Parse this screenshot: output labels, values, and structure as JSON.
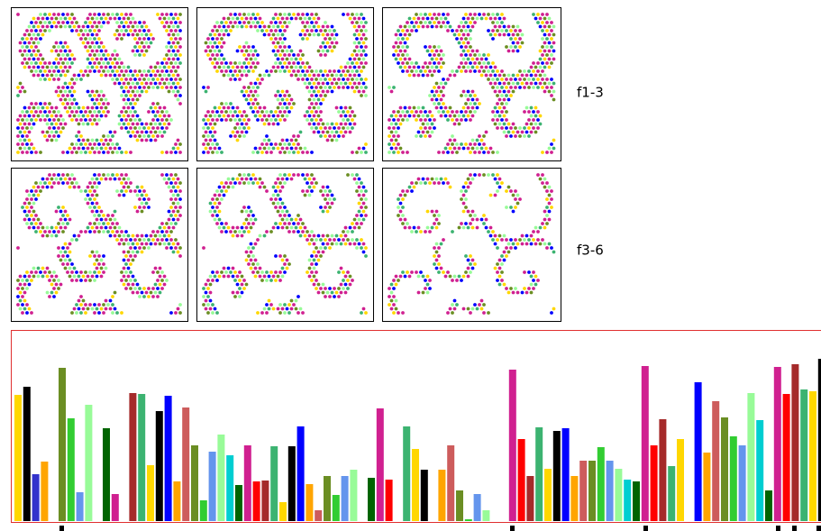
{
  "row_labels": [
    "f1-3",
    "f3-6"
  ],
  "chart_data": {
    "type": "bar",
    "values": [
      140,
      149,
      52,
      66,
      0,
      170,
      114,
      32,
      129,
      0,
      103,
      30,
      0,
      142,
      141,
      62,
      122,
      139,
      44,
      126,
      84,
      23,
      77,
      96,
      73,
      40,
      84,
      44,
      45,
      83,
      21,
      83,
      105,
      41,
      12,
      50,
      29,
      50,
      57,
      0,
      48,
      125,
      46,
      0,
      105,
      80,
      57,
      0,
      57,
      84,
      34,
      2,
      30,
      12,
      0,
      0,
      168,
      91,
      50,
      104,
      58,
      100,
      103,
      50,
      67,
      67,
      82,
      67,
      58,
      46,
      44,
      172,
      84,
      113,
      61,
      91,
      0,
      154,
      76,
      133,
      115,
      94,
      84,
      142,
      112,
      34,
      171,
      141,
      174,
      146,
      144,
      180
    ],
    "colors": [
      "#ffd700",
      "#000000",
      "#3333cc",
      "#ffa500",
      "#cd5c5c",
      "#6b8e23",
      "#32cd32",
      "#6495ed",
      "#98fb98",
      "#00ced1",
      "#006400",
      "#d02090",
      "#ff0000",
      "#a52a2a",
      "#3cb371",
      "#ffd700",
      "#000000",
      "#0000ff",
      "#ffa500",
      "#cd5c5c",
      "#6b8e23",
      "#32cd32",
      "#6495ed",
      "#98fb98",
      "#00ced1",
      "#006400",
      "#d02090",
      "#ff0000",
      "#a52a2a",
      "#3cb371",
      "#ffd700",
      "#000000",
      "#0000ff",
      "#ffa500",
      "#cd5c5c",
      "#6b8e23",
      "#32cd32",
      "#6495ed",
      "#98fb98",
      "#00ced1",
      "#006400",
      "#d02090",
      "#ff0000",
      "#a52a2a",
      "#3cb371",
      "#ffd700",
      "#000000",
      "#0000ff",
      "#ffa500",
      "#cd5c5c",
      "#6b8e23",
      "#32cd32",
      "#6495ed",
      "#98fb98",
      "#00ced1",
      "#006400",
      "#d02090",
      "#ff0000",
      "#a52a2a",
      "#3cb371",
      "#ffd700",
      "#000000",
      "#0000ff",
      "#ffa500",
      "#cd5c5c",
      "#6b8e23",
      "#32cd32",
      "#6495ed",
      "#98fb98",
      "#00ced1",
      "#006400",
      "#d02090",
      "#ff0000",
      "#a52a2a",
      "#3cb371",
      "#ffd700",
      "#000000",
      "#0000ff",
      "#ffa500",
      "#cd5c5c",
      "#6b8e23",
      "#32cd32",
      "#6495ed",
      "#98fb98",
      "#00ced1",
      "#006400",
      "#d02090",
      "#ff0000",
      "#a52a2a",
      "#3cb371",
      "#ffd700",
      "#000000"
    ]
  }
}
